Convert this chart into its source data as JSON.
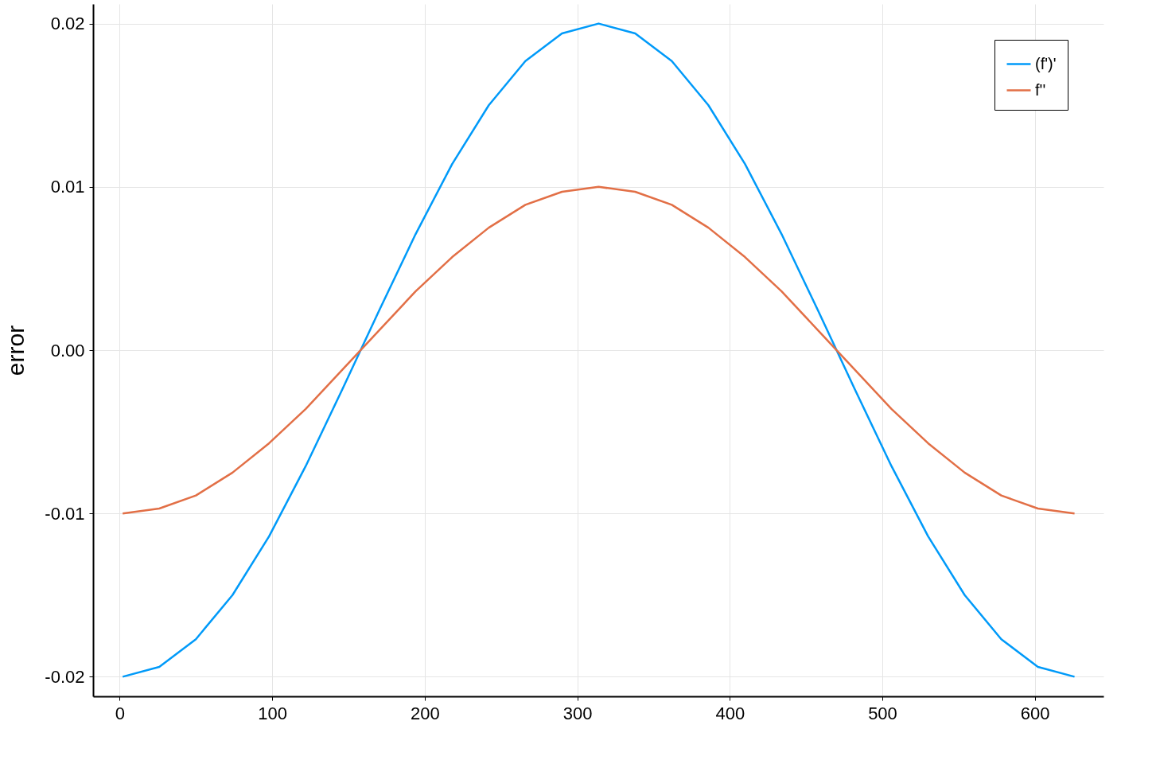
{
  "chart_data": {
    "type": "line",
    "ylabel": "error",
    "x": [
      2,
      26,
      50,
      74,
      98,
      122,
      146,
      170,
      194,
      218,
      242,
      266,
      290,
      314,
      338,
      362,
      386,
      410,
      434,
      458,
      482,
      506,
      530,
      554,
      578,
      602,
      626
    ],
    "series": [
      {
        "name": "(f')'",
        "color": "#009af9",
        "values": [
          -0.02,
          -0.0194,
          -0.0177,
          -0.015,
          -0.0114,
          -0.0071,
          -0.0024,
          0.0024,
          0.0071,
          0.0114,
          0.015,
          0.0177,
          0.0194,
          0.02,
          0.0194,
          0.0177,
          0.015,
          0.0114,
          0.0071,
          0.0024,
          -0.0024,
          -0.0071,
          -0.0114,
          -0.015,
          -0.0177,
          -0.0194,
          -0.02
        ]
      },
      {
        "name": "f''",
        "color": "#e26f46",
        "values": [
          -0.01,
          -0.0097,
          -0.0089,
          -0.0075,
          -0.0057,
          -0.0036,
          -0.0012,
          0.0012,
          0.0036,
          0.0057,
          0.0075,
          0.0089,
          0.0097,
          0.01,
          0.0097,
          0.0089,
          0.0075,
          0.0057,
          0.0036,
          0.0012,
          -0.0012,
          -0.0036,
          -0.0057,
          -0.0075,
          -0.0089,
          -0.0097,
          -0.01
        ]
      }
    ],
    "xlim": [
      -17.4,
      645
    ],
    "ylim": [
      -0.0212,
      0.0212
    ],
    "xticks": [
      0,
      100,
      200,
      300,
      400,
      500,
      600
    ],
    "yticks": [
      {
        "value": -0.02,
        "label": "-0.02"
      },
      {
        "value": -0.01,
        "label": "-0.01"
      },
      {
        "value": 0,
        "label": "0.00"
      },
      {
        "value": 0.01,
        "label": "0.01"
      },
      {
        "value": 0.02,
        "label": "0.02"
      }
    ],
    "grid": true,
    "legend": "top right",
    "line_style": "solid",
    "marker": "none"
  }
}
